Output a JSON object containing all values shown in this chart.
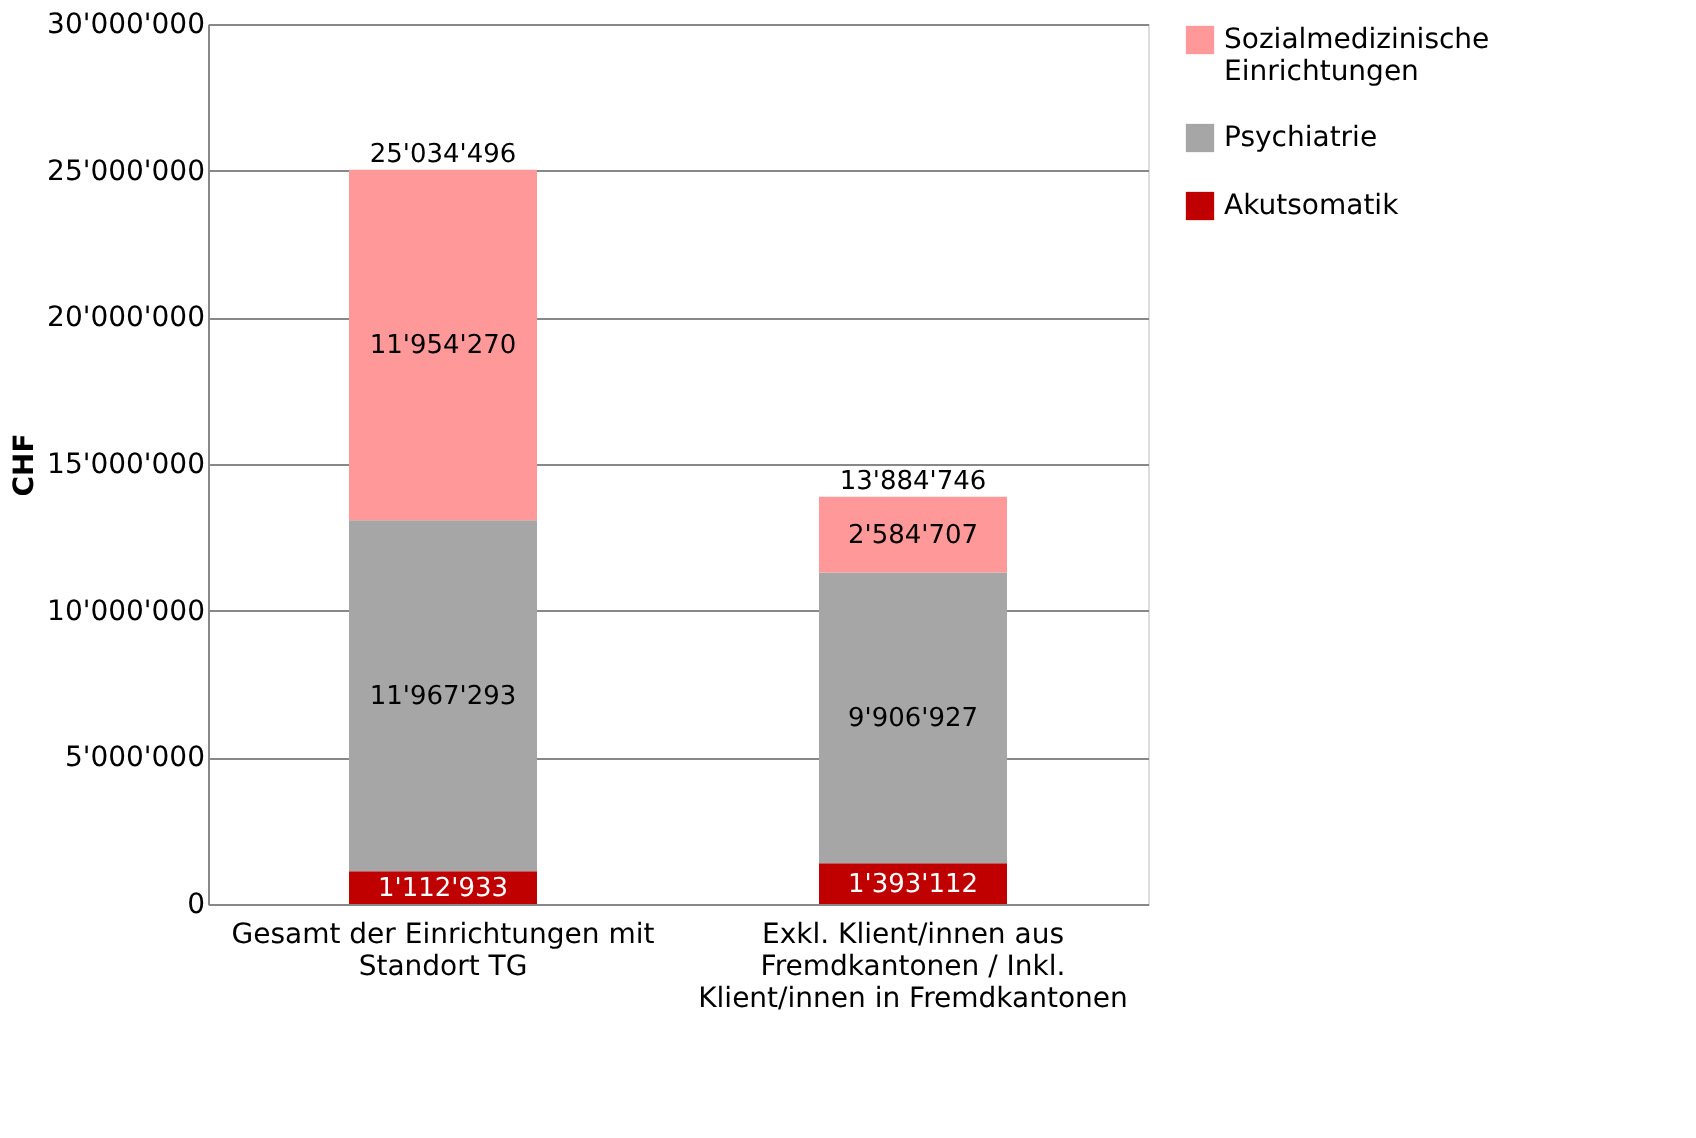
{
  "chart_data": {
    "type": "bar",
    "stacked": true,
    "ylabel": "CHF",
    "categories": [
      "Gesamt der Einrichtungen mit Standort TG",
      "Exkl. Klient/innen aus Fremdkantonen / Inkl. Klient/innen in Fremdkantonen"
    ],
    "series": [
      {
        "name": "Akutsomatik",
        "color": "#c00000",
        "values": [
          1112933,
          1393112
        ],
        "value_labels": [
          "1'112'933",
          "1'393'112"
        ]
      },
      {
        "name": "Psychiatrie",
        "color": "#a6a6a6",
        "values": [
          11967293,
          9906927
        ],
        "value_labels": [
          "11'967'293",
          "9'906'927"
        ]
      },
      {
        "name": "Sozialmedizinische Einrichtungen",
        "color": "#ff9999",
        "values": [
          11954270,
          2584707
        ],
        "value_labels": [
          "11'954'270",
          "2'584'707"
        ]
      }
    ],
    "ylim": [
      0,
      30000000
    ],
    "yticks": [
      {
        "value": 0,
        "label": "0"
      },
      {
        "value": 5000000,
        "label": "5'000'000"
      },
      {
        "value": 10000000,
        "label": "10'000'000"
      },
      {
        "value": 15000000,
        "label": "15'000'000"
      },
      {
        "value": 20000000,
        "label": "20'000'000"
      },
      {
        "value": 25000000,
        "label": "25'000'000"
      },
      {
        "value": 30000000,
        "label": "30'000'000"
      }
    ],
    "totals": [
      "25'034'496",
      "13'884'746"
    ],
    "grid": "y",
    "legend": "right"
  }
}
